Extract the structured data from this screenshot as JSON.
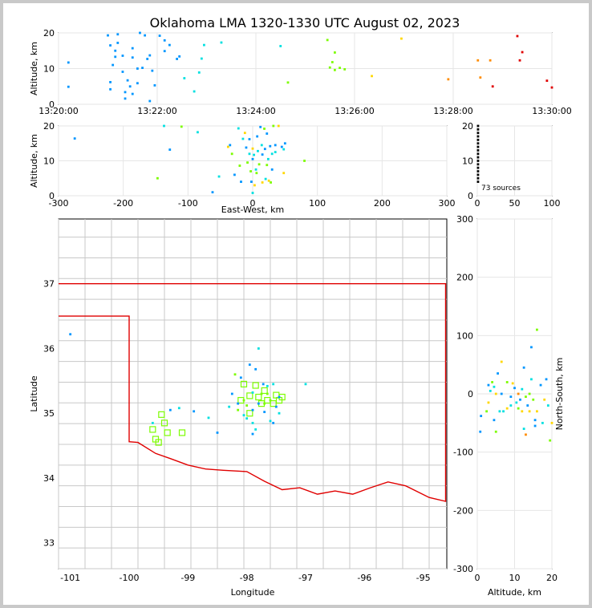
{
  "title": "Oklahoma LMA 1320-1330 UTC August 02, 2023",
  "colors": {
    "counties": "#c8c8c8",
    "state_border": "#e00000",
    "station": "#7cfc00",
    "grid": "#e6e6e6"
  },
  "chart_data": [
    {
      "type": "scatter",
      "name": "altitude-vs-time",
      "ylabel": "Altitude, km",
      "x_ticks": [
        "13:20:00",
        "13:22:00",
        "13:24:00",
        "13:26:00",
        "13:28:00",
        "13:30:00"
      ],
      "xlim_minutes": [
        0,
        10
      ],
      "ylim": [
        0,
        20
      ],
      "y_ticks": [
        0,
        10,
        20
      ],
      "grid": true,
      "points": [
        [
          0.2,
          11.7
        ],
        [
          0.2,
          4.9
        ],
        [
          1.0,
          19.3
        ],
        [
          1.05,
          16.5
        ],
        [
          1.05,
          4.2
        ],
        [
          1.05,
          6.2
        ],
        [
          1.1,
          11.0
        ],
        [
          1.15,
          13.3
        ],
        [
          1.15,
          15.0
        ],
        [
          1.2,
          19.6
        ],
        [
          1.2,
          17.2
        ],
        [
          1.3,
          13.6
        ],
        [
          1.3,
          9.1
        ],
        [
          1.35,
          3.4
        ],
        [
          1.35,
          1.6
        ],
        [
          1.4,
          6.7
        ],
        [
          1.45,
          5.0
        ],
        [
          1.5,
          15.7
        ],
        [
          1.5,
          13.1
        ],
        [
          1.5,
          2.9
        ],
        [
          1.6,
          10.0
        ],
        [
          1.6,
          5.9
        ],
        [
          1.65,
          20.0
        ],
        [
          1.7,
          10.2
        ],
        [
          1.75,
          19.3
        ],
        [
          1.8,
          12.7
        ],
        [
          1.85,
          13.7
        ],
        [
          1.85,
          0.9
        ],
        [
          1.9,
          9.4
        ],
        [
          1.95,
          5.3
        ],
        [
          2.05,
          19.2
        ],
        [
          2.15,
          17.9
        ],
        [
          2.15,
          14.9
        ],
        [
          2.25,
          16.6
        ],
        [
          2.4,
          12.7
        ],
        [
          2.45,
          13.4
        ],
        [
          2.55,
          7.3
        ],
        [
          2.75,
          3.6
        ],
        [
          2.85,
          8.9
        ],
        [
          2.9,
          12.8
        ],
        [
          2.95,
          16.6
        ],
        [
          3.3,
          17.3
        ],
        [
          4.5,
          16.3
        ],
        [
          4.65,
          6.1
        ],
        [
          5.45,
          18.0
        ],
        [
          5.6,
          14.5
        ],
        [
          5.55,
          11.8
        ],
        [
          5.5,
          10.3
        ],
        [
          5.6,
          9.6
        ],
        [
          5.7,
          10.2
        ],
        [
          5.8,
          9.8
        ],
        [
          6.35,
          7.9
        ],
        [
          6.95,
          18.4
        ],
        [
          7.9,
          7.0
        ],
        [
          8.5,
          12.3
        ],
        [
          8.55,
          7.5
        ],
        [
          8.75,
          12.3
        ],
        [
          8.8,
          5.0
        ],
        [
          9.3,
          19.1
        ],
        [
          9.35,
          12.3
        ],
        [
          9.4,
          14.6
        ],
        [
          9.9,
          6.6
        ],
        [
          10.0,
          4.7
        ]
      ]
    },
    {
      "type": "scatter",
      "name": "altitude-vs-east-west",
      "xlabel": "East-West, km",
      "ylabel": "Altitude, km",
      "xlim": [
        -300,
        300
      ],
      "x_ticks": [
        -300,
        -200,
        -100,
        0,
        100,
        200,
        300
      ],
      "ylim": [
        0,
        20
      ],
      "y_ticks": [
        0,
        10,
        20
      ],
      "grid": true,
      "points": [
        [
          -275,
          16.4
        ],
        [
          -137,
          20.0
        ],
        [
          -110,
          19.8
        ],
        [
          -128,
          13.2
        ],
        [
          -85,
          18.2
        ],
        [
          -147,
          5.0
        ],
        [
          -62,
          1.0
        ],
        [
          -52,
          5.5
        ],
        [
          -38,
          14.0
        ],
        [
          -35,
          14.5
        ],
        [
          -32,
          12.0
        ],
        [
          -28,
          6.0
        ],
        [
          -22,
          19.3
        ],
        [
          -20,
          8.6
        ],
        [
          -18,
          4.0
        ],
        [
          -15,
          16.3
        ],
        [
          -12,
          18.0
        ],
        [
          -10,
          13.8
        ],
        [
          -8,
          9.5
        ],
        [
          -5,
          16.2
        ],
        [
          -5,
          12.0
        ],
        [
          -3,
          7.0
        ],
        [
          -2,
          4.0
        ],
        [
          0,
          0.8
        ],
        [
          0,
          13.5
        ],
        [
          0,
          10.5
        ],
        [
          2,
          11.7
        ],
        [
          3,
          3.0
        ],
        [
          5,
          7.5
        ],
        [
          6,
          6.5
        ],
        [
          7,
          17.0
        ],
        [
          8,
          12.8
        ],
        [
          10,
          9.0
        ],
        [
          12,
          19.7
        ],
        [
          14,
          14.5
        ],
        [
          15,
          3.8
        ],
        [
          15,
          11.8
        ],
        [
          18,
          19.2
        ],
        [
          19,
          13.4
        ],
        [
          20,
          4.8
        ],
        [
          22,
          8.8
        ],
        [
          22,
          17.8
        ],
        [
          24,
          10.5
        ],
        [
          25,
          4.3
        ],
        [
          27,
          14.2
        ],
        [
          28,
          3.8
        ],
        [
          30,
          7.5
        ],
        [
          30,
          12.0
        ],
        [
          32,
          20.0
        ],
        [
          35,
          14.5
        ],
        [
          35,
          12.5
        ],
        [
          40,
          20.0
        ],
        [
          45,
          14.0
        ],
        [
          48,
          13.3
        ],
        [
          48,
          6.5
        ],
        [
          50,
          15.0
        ],
        [
          80,
          10.0
        ]
      ]
    },
    {
      "type": "histogram",
      "name": "altitude-histogram",
      "xlim": [
        0,
        100
      ],
      "x_ticks": [
        0,
        50,
        100
      ],
      "ylim": [
        0,
        20
      ],
      "y_ticks": [
        0,
        10,
        20
      ],
      "annotation": "73 sources"
    },
    {
      "type": "map",
      "name": "plan-view",
      "xlabel": "Longitude",
      "ylabel": "Latitude",
      "xlim": [
        -101.2,
        -94.6
      ],
      "ylim": [
        32.6,
        38.0
      ],
      "x_ticks": [
        -101,
        -100,
        -99,
        -98,
        -97,
        -96,
        -95
      ],
      "y_ticks": [
        33,
        34,
        35,
        36,
        37
      ],
      "stations": [
        [
          -99.6,
          34.75
        ],
        [
          -99.5,
          34.55
        ],
        [
          -99.45,
          34.98
        ],
        [
          -99.4,
          34.85
        ],
        [
          -99.35,
          34.7
        ],
        [
          -99.55,
          34.6
        ],
        [
          -99.1,
          34.7
        ],
        [
          -98.1,
          35.2
        ],
        [
          -98.05,
          35.45
        ],
        [
          -97.95,
          35.27
        ],
        [
          -97.95,
          35.0
        ],
        [
          -97.85,
          35.43
        ],
        [
          -97.8,
          35.25
        ],
        [
          -97.75,
          35.15
        ],
        [
          -97.7,
          35.35
        ],
        [
          -97.65,
          35.2
        ],
        [
          -97.55,
          35.15
        ],
        [
          -97.5,
          35.28
        ],
        [
          -97.45,
          35.2
        ],
        [
          -97.4,
          35.25
        ]
      ],
      "points": [
        [
          -101.0,
          36.22
        ],
        [
          -99.6,
          34.85
        ],
        [
          -99.3,
          35.05
        ],
        [
          -99.15,
          35.08
        ],
        [
          -98.9,
          35.03
        ],
        [
          -98.65,
          34.93
        ],
        [
          -98.5,
          34.7
        ],
        [
          -98.3,
          35.1
        ],
        [
          -98.25,
          35.3
        ],
        [
          -98.2,
          35.6
        ],
        [
          -98.15,
          35.15
        ],
        [
          -98.15,
          35.05
        ],
        [
          -98.1,
          35.55
        ],
        [
          -98.05,
          35.2
        ],
        [
          -98.05,
          34.97
        ],
        [
          -98.0,
          35.12
        ],
        [
          -98.0,
          34.92
        ],
        [
          -97.95,
          35.75
        ],
        [
          -97.9,
          35.32
        ],
        [
          -97.9,
          35.05
        ],
        [
          -97.9,
          34.85
        ],
        [
          -97.9,
          34.68
        ],
        [
          -97.85,
          34.75
        ],
        [
          -97.85,
          35.68
        ],
        [
          -97.8,
          36.0
        ],
        [
          -97.8,
          35.15
        ],
        [
          -97.75,
          35.3
        ],
        [
          -97.72,
          35.45
        ],
        [
          -97.7,
          35.15
        ],
        [
          -97.7,
          35.02
        ],
        [
          -97.65,
          35.3
        ],
        [
          -97.65,
          35.42
        ],
        [
          -97.6,
          35.2
        ],
        [
          -97.6,
          34.88
        ],
        [
          -97.55,
          34.85
        ],
        [
          -97.55,
          35.45
        ],
        [
          -97.5,
          35.1
        ],
        [
          -97.45,
          35.0
        ],
        [
          -97.45,
          35.25
        ],
        [
          -97.0,
          35.45
        ]
      ]
    },
    {
      "type": "scatter",
      "name": "north-south-vs-altitude",
      "xlabel": "Altitude, km",
      "ylabel": "North-South, km",
      "xlim": [
        0,
        20
      ],
      "x_ticks": [
        0,
        10,
        20
      ],
      "ylim": [
        -300,
        300
      ],
      "y_ticks": [
        -300,
        -200,
        -100,
        0,
        100,
        200,
        300
      ],
      "grid": true,
      "points": [
        [
          0.8,
          -65
        ],
        [
          1.0,
          -38
        ],
        [
          2.5,
          -30
        ],
        [
          3.0,
          -15
        ],
        [
          3.0,
          15
        ],
        [
          3.5,
          5
        ],
        [
          4.0,
          20
        ],
        [
          4.5,
          -45
        ],
        [
          4.5,
          12
        ],
        [
          5.0,
          -65
        ],
        [
          5.0,
          0
        ],
        [
          5.5,
          35
        ],
        [
          6.0,
          -30
        ],
        [
          6.5,
          55
        ],
        [
          6.5,
          0
        ],
        [
          7.0,
          -30
        ],
        [
          8.0,
          20
        ],
        [
          8.0,
          -25
        ],
        [
          9.0,
          -5
        ],
        [
          9.0,
          -20
        ],
        [
          9.5,
          18
        ],
        [
          10.0,
          10
        ],
        [
          10.5,
          -15
        ],
        [
          11.0,
          -25
        ],
        [
          11.0,
          0
        ],
        [
          11.5,
          -10
        ],
        [
          12.0,
          8
        ],
        [
          12.0,
          -30
        ],
        [
          12.5,
          45
        ],
        [
          12.5,
          -60
        ],
        [
          13.0,
          -5
        ],
        [
          13.0,
          -70
        ],
        [
          13.5,
          -20
        ],
        [
          14.0,
          0
        ],
        [
          14.0,
          -30
        ],
        [
          14.5,
          80
        ],
        [
          14.5,
          25
        ],
        [
          15.0,
          -10
        ],
        [
          15.5,
          -45
        ],
        [
          15.5,
          -55
        ],
        [
          16.0,
          110
        ],
        [
          16.0,
          -30
        ],
        [
          17.0,
          15
        ],
        [
          17.5,
          -50
        ],
        [
          18.0,
          -10
        ],
        [
          18.5,
          25
        ],
        [
          19.0,
          -20
        ],
        [
          19.5,
          -80
        ],
        [
          20.0,
          -50
        ]
      ]
    }
  ]
}
